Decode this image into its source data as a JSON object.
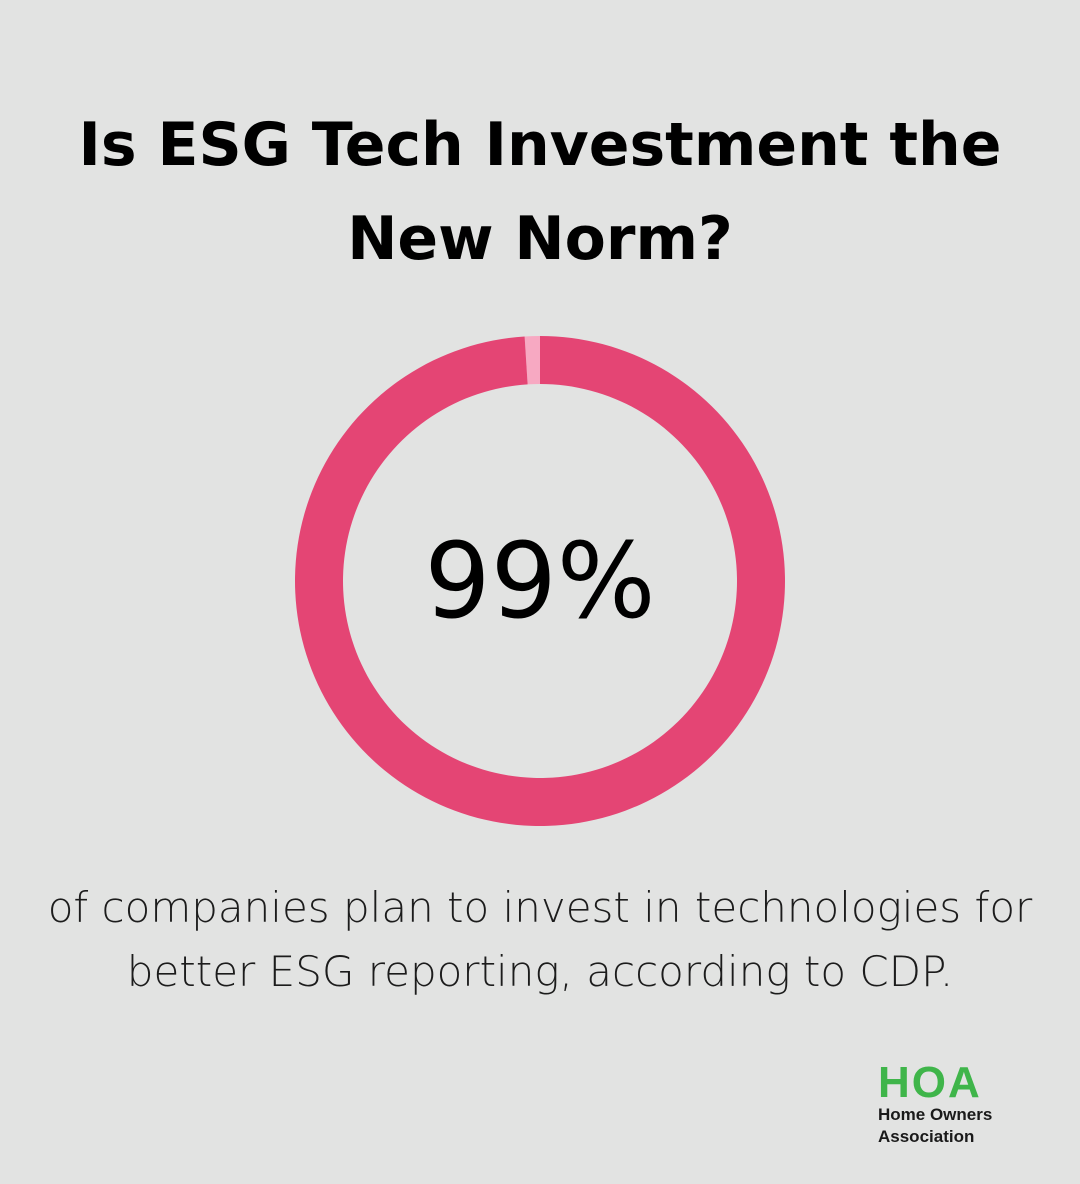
{
  "title": "Is ESG Tech Investment the New Norm?",
  "chart_data": {
    "type": "pie",
    "value": 99,
    "remainder": 1,
    "center_label": "99%",
    "caption": "of companies plan to invest in technologies for better ESG reporting, according to CDP.",
    "colors": {
      "filled": "#e44574",
      "remainder": "#f7a9c2"
    }
  },
  "logo": {
    "mark": "HOA",
    "line1": "Home Owners",
    "line2": "Association",
    "color": "#3fb54a"
  },
  "colors": {
    "background": "#e2e3e2"
  }
}
